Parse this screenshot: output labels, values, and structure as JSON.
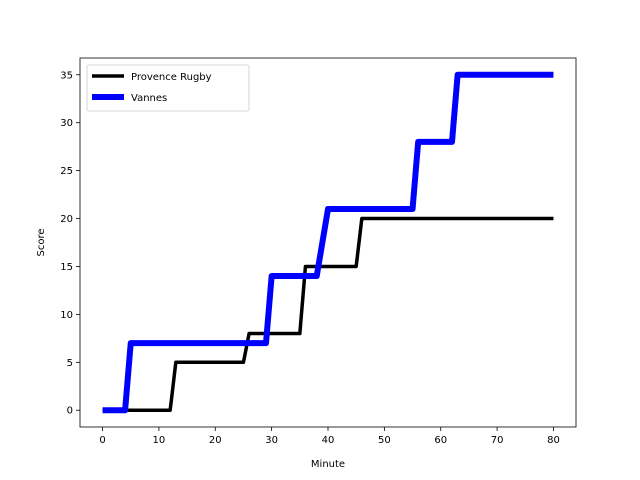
{
  "chart_data": {
    "type": "line",
    "title": "",
    "xlabel": "Minute",
    "ylabel": "Score",
    "xlim": [
      -4,
      84
    ],
    "ylim": [
      -1.75,
      36.75
    ],
    "xticks": [
      0,
      10,
      20,
      30,
      40,
      50,
      60,
      70,
      80
    ],
    "yticks": [
      0,
      5,
      10,
      15,
      20,
      25,
      30,
      35
    ],
    "grid": false,
    "legend_position": "top-left",
    "series": [
      {
        "name": "Provence Rugby",
        "color": "#000000",
        "x": [
          0,
          12,
          13,
          25,
          26,
          35,
          36,
          45,
          46,
          80
        ],
        "y": [
          0,
          0,
          5,
          5,
          8,
          8,
          15,
          15,
          20,
          20
        ]
      },
      {
        "name": "Vannes",
        "color": "#0000ff",
        "x": [
          0,
          4,
          5,
          29,
          30,
          38,
          40,
          55,
          56,
          62,
          63,
          80
        ],
        "y": [
          0,
          0,
          7,
          7,
          14,
          14,
          21,
          21,
          28,
          28,
          35,
          35
        ]
      }
    ]
  }
}
